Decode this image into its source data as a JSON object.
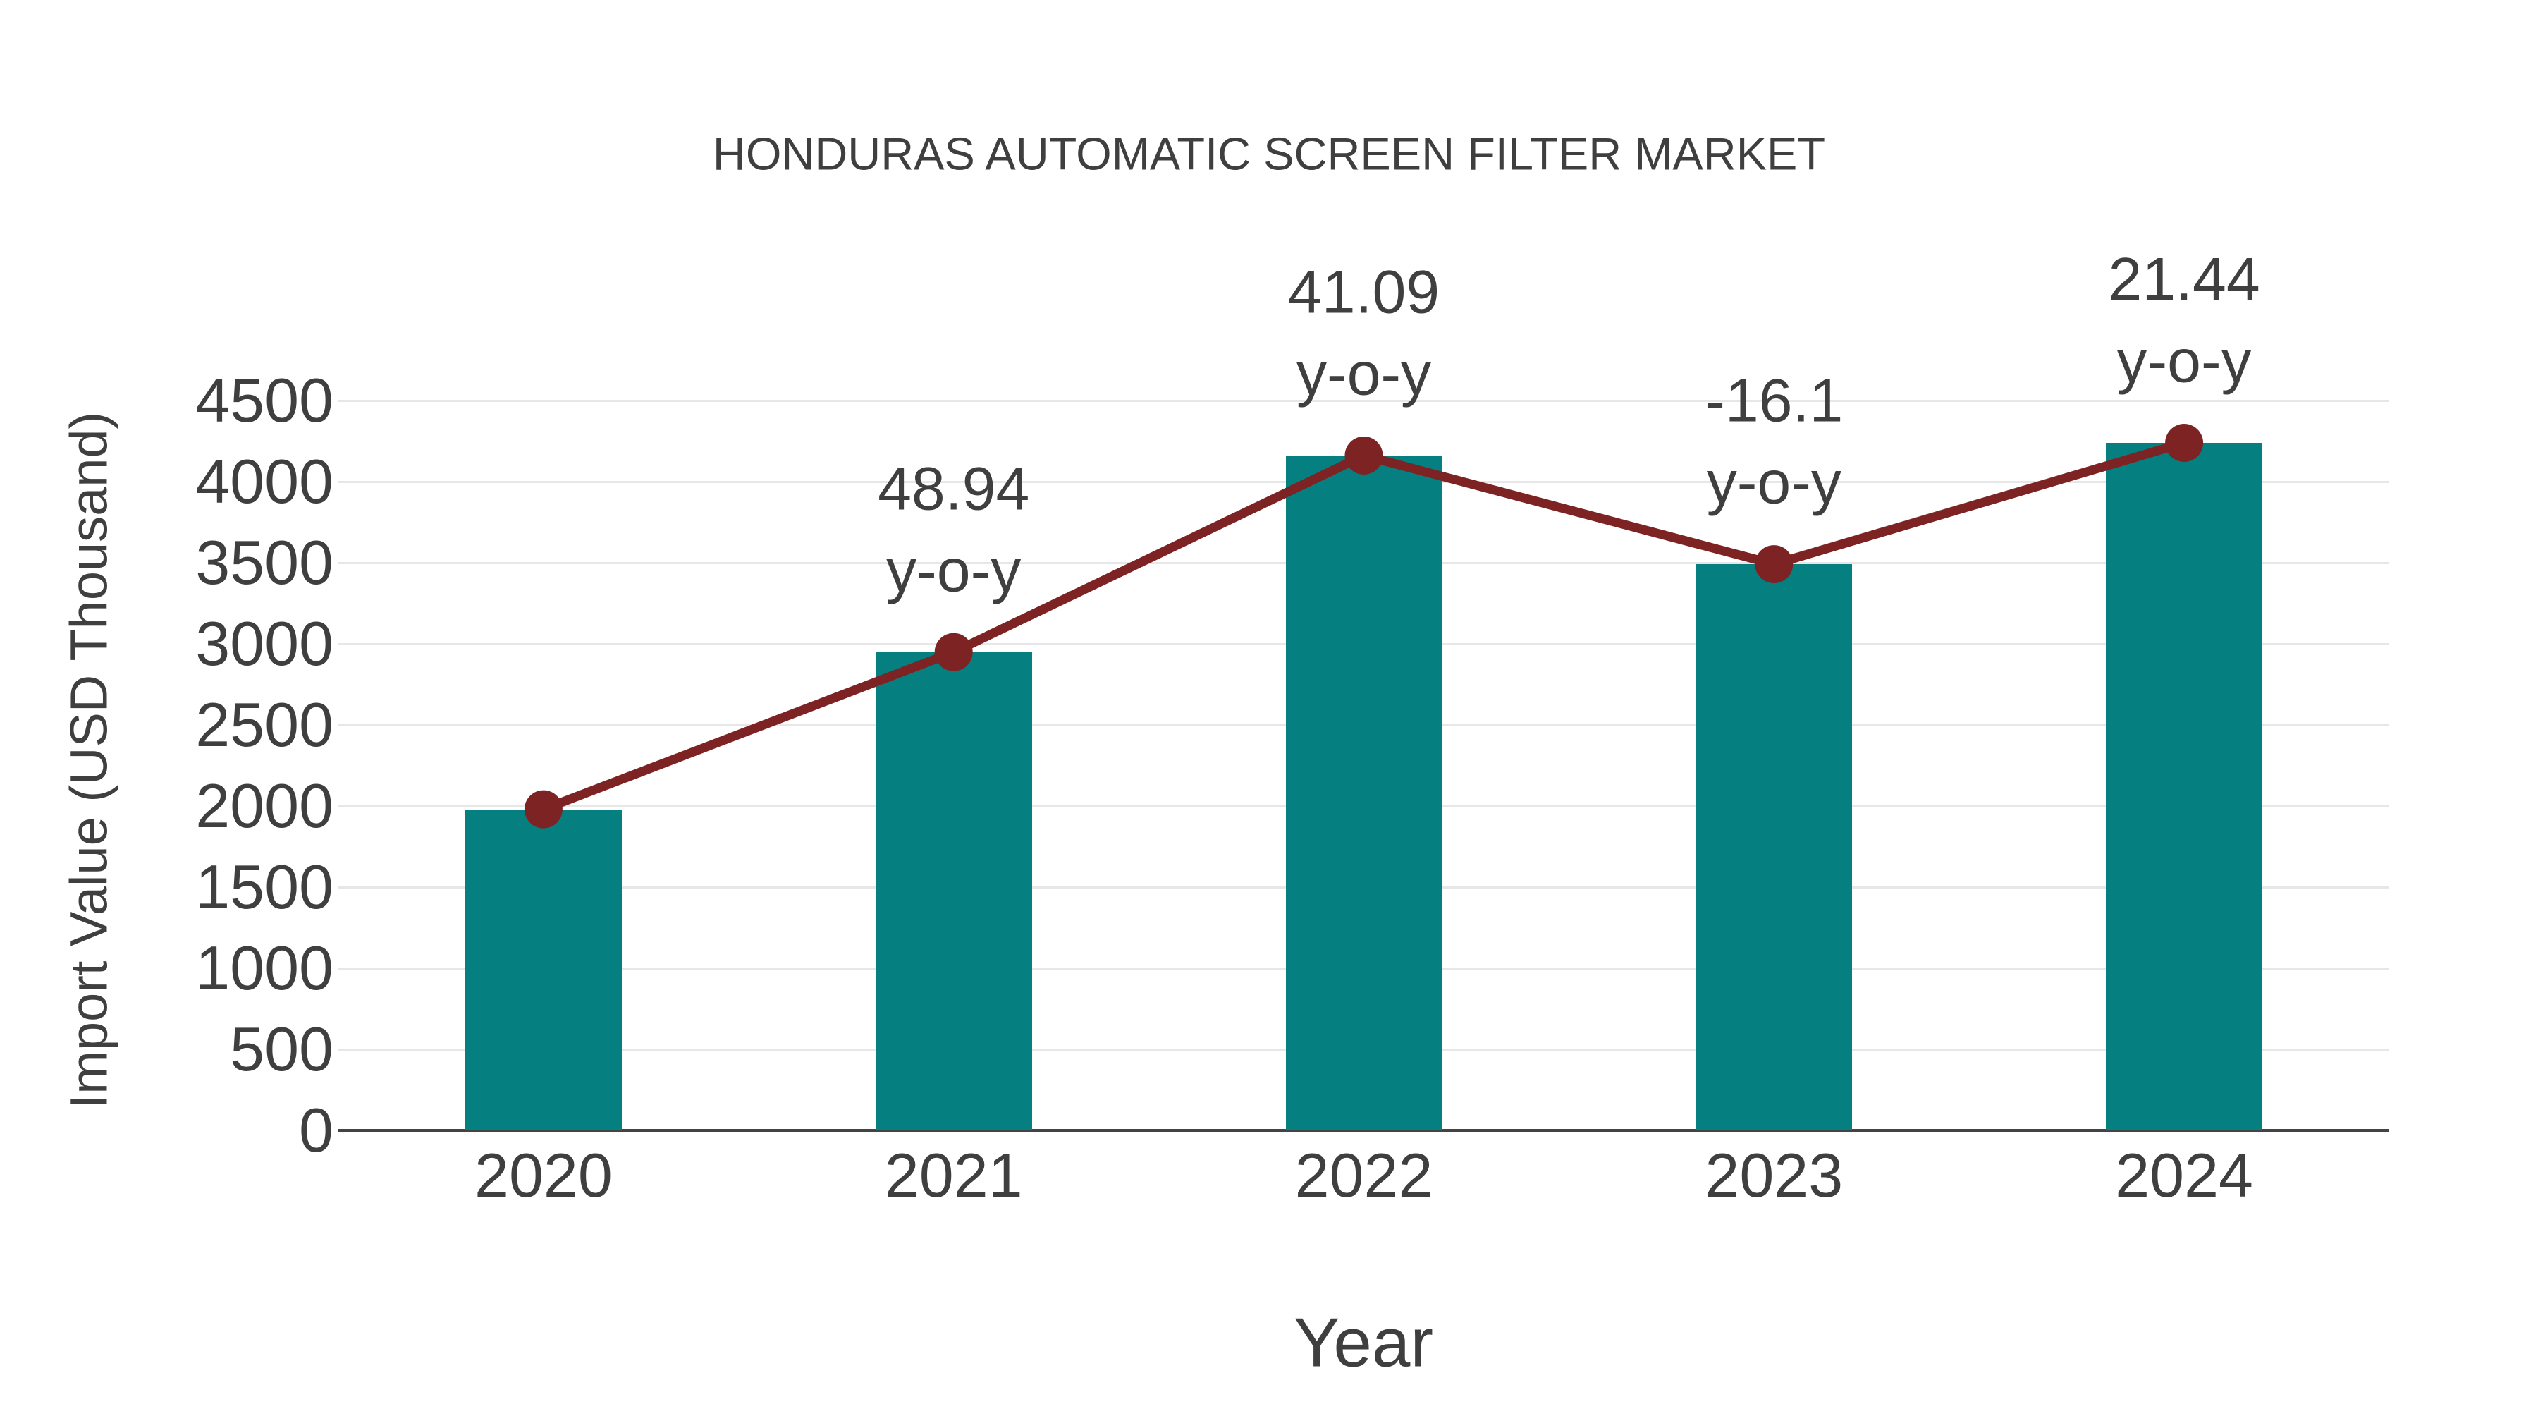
{
  "chart_data": {
    "type": "bar",
    "title": "HONDURAS AUTOMATIC SCREEN FILTER MARKET",
    "xlabel": "Year",
    "ylabel": "Import Value (USD Thousand)",
    "categories": [
      "2020",
      "2021",
      "2022",
      "2023",
      "2024"
    ],
    "series": [
      {
        "name": "import-value-bars",
        "type": "bar",
        "values": [
          1980,
          2949,
          4161,
          3491,
          4239
        ]
      },
      {
        "name": "yoy-trend-line",
        "type": "line",
        "values": [
          1980,
          2949,
          4161,
          3491,
          4239
        ]
      }
    ],
    "annotations": [
      {
        "category": "2021",
        "value": "48.94",
        "suffix": "y-o-y"
      },
      {
        "category": "2022",
        "value": "41.09",
        "suffix": "y-o-y"
      },
      {
        "category": "2023",
        "value": "-16.1",
        "suffix": "y-o-y"
      },
      {
        "category": "2024",
        "value": "21.44",
        "suffix": "y-o-y"
      }
    ],
    "ylim": [
      0,
      4500
    ],
    "ytick_step": 500,
    "grid": true,
    "legend_position": "none",
    "colors": {
      "bar": "#067f81",
      "line": "#7e2323",
      "marker": "#7e2323",
      "text": "#3f3f3f",
      "grid": "#e7e7e7",
      "axis_line": "#444444",
      "background": "#ffffff"
    }
  }
}
